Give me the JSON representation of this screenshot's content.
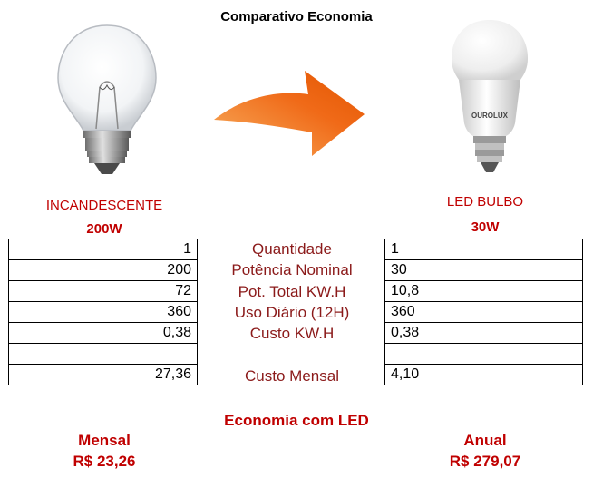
{
  "title": "Comparativo Economia",
  "left": {
    "name": "INCANDESCENTE",
    "watt": "200W",
    "values": [
      "1",
      "200",
      "72",
      "360",
      "0,38",
      "",
      "27,36"
    ]
  },
  "right": {
    "name": "LED BULBO",
    "watt": "30W",
    "brand": "OUROLUX",
    "values": [
      "1",
      "30",
      "10,8",
      "360",
      "0,38",
      "",
      "4,10"
    ]
  },
  "labels": [
    "Quantidade",
    "Potência Nominal",
    "Pot. Total KW.H",
    "Uso Diário (12H)",
    "Custo KW.H",
    "Custo Mensal"
  ],
  "economy": {
    "heading": "Economia com LED",
    "monthly_label": "Mensal",
    "monthly_value": "R$ 23,26",
    "annual_label": "Anual",
    "annual_value": "R$ 279,07"
  },
  "colors": {
    "accent_red": "#c00000",
    "label_brown": "#8b1a1a",
    "arrow": "#f07020"
  }
}
